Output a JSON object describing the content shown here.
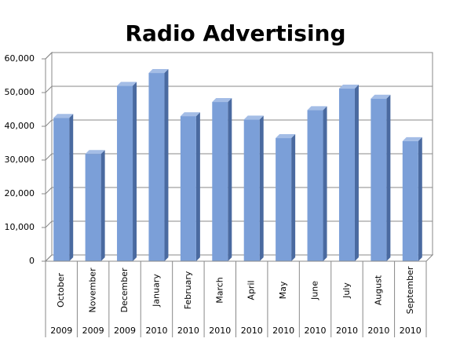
{
  "chart_data": {
    "type": "bar",
    "title": "Radio Advertising",
    "categories": [
      "October",
      "November",
      "December",
      "January",
      "February",
      "March",
      "April",
      "May",
      "June",
      "July",
      "August",
      "September"
    ],
    "category_years": [
      "2009",
      "2009",
      "2009",
      "2010",
      "2010",
      "2010",
      "2010",
      "2010",
      "2010",
      "2010",
      "2010",
      "2010"
    ],
    "values": [
      42500,
      31800,
      52000,
      55800,
      43000,
      47200,
      42000,
      36500,
      44800,
      51200,
      48200,
      35600
    ],
    "color": "#7b9fd8",
    "ylim": [
      0,
      60000
    ],
    "yticks": [
      0,
      {
        "value": 10000,
        "label": "10,000"
      },
      {
        "value": 20000,
        "label": "20,000"
      },
      {
        "value": 30000,
        "label": "30,000"
      },
      {
        "value": 40000,
        "label": "40,000"
      },
      {
        "value": 50000,
        "label": "50,000"
      },
      {
        "value": 60000,
        "label": "60,000"
      }
    ],
    "grid": true
  }
}
